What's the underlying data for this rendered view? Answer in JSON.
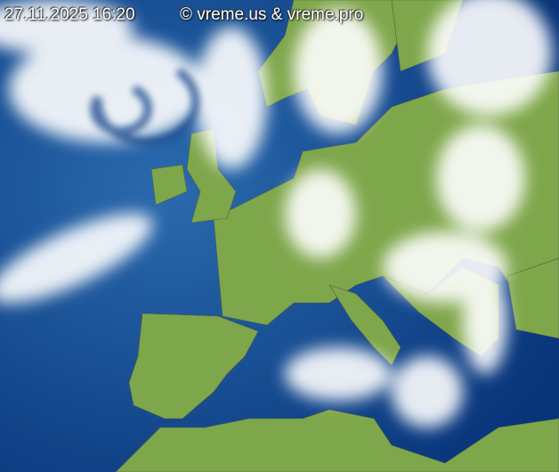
{
  "overlay": {
    "timestamp": "27.11.2025 16:20",
    "copyright": "© vreme.us & vreme.pro"
  },
  "colors": {
    "sea": "#0b3f86",
    "land": "#7ea64a",
    "cloud": "#ffffff"
  }
}
